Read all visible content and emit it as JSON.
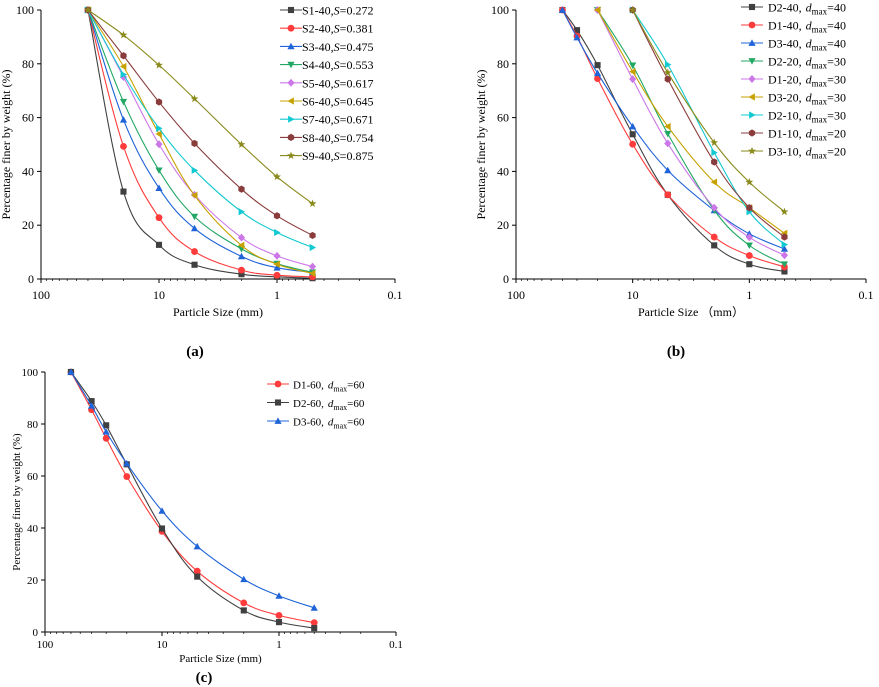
{
  "captions": [
    "(a)",
    "(b)",
    "(c)"
  ],
  "chart_data": [
    {
      "id": "a",
      "type": "line",
      "xscale": "log-reversed",
      "xlabel": "Particle Size (mm)",
      "ylabel": "Percentage finer by weight (%)",
      "xlim": [
        100,
        0.1
      ],
      "ylim": [
        0,
        100
      ],
      "xticks": [
        100,
        10,
        1,
        0.1
      ],
      "xtick_labels": [
        "100",
        "10",
        "1",
        "0.1"
      ],
      "yticks": [
        0,
        20,
        40,
        60,
        80,
        100
      ],
      "ytick_labels": [
        "0",
        "20",
        "40",
        "60",
        "80",
        "100"
      ],
      "x": [
        40,
        20,
        10,
        5,
        2,
        1,
        0.5
      ],
      "legend_position": "top-right",
      "series": [
        {
          "name": "S1-40,",
          "suffix": "=0.272",
          "dmax": false,
          "color": "#404040",
          "marker": "square",
          "values": [
            100,
            32.5,
            12.7,
            5.3,
            1.8,
            0.8,
            0.3
          ]
        },
        {
          "name": "S2-40,",
          "suffix": "=0.381",
          "dmax": false,
          "color": "#ff3b3b",
          "marker": "circle",
          "values": [
            100,
            49.3,
            22.8,
            10.2,
            3.3,
            1.4,
            0.8
          ]
        },
        {
          "name": "S3-40,",
          "suffix": "=0.475",
          "dmax": false,
          "color": "#1f63d8",
          "marker": "triangle-up",
          "values": [
            100,
            59.2,
            33.8,
            18.8,
            8.4,
            4.2,
            2.5
          ]
        },
        {
          "name": "S4-40,",
          "suffix": "=0.553",
          "dmax": false,
          "color": "#22a864",
          "marker": "triangle-down",
          "values": [
            100,
            65.9,
            40.4,
            23.2,
            11.2,
            5.7,
            2.5
          ]
        },
        {
          "name": "S5-40,",
          "suffix": "=0.617",
          "dmax": false,
          "color": "#cc77e8",
          "marker": "diamond",
          "values": [
            100,
            75.1,
            50.1,
            31.3,
            15.4,
            8.6,
            4.6
          ]
        },
        {
          "name": "S6-40,",
          "suffix": "=0.645",
          "dmax": false,
          "color": "#c7a100",
          "marker": "triangle-left",
          "values": [
            100,
            79.0,
            53.9,
            31.1,
            12.5,
            5.5,
            2.1
          ]
        },
        {
          "name": "S7-40,",
          "suffix": "=0.671",
          "dmax": false,
          "color": "#11c9d1",
          "marker": "triangle-right",
          "values": [
            100,
            76.0,
            56.0,
            40.4,
            25.0,
            17.3,
            11.7
          ]
        },
        {
          "name": "S8-40,",
          "suffix": "=0.754",
          "dmax": false,
          "color": "#8a3c3c",
          "marker": "hexagon",
          "values": [
            100,
            83.0,
            65.8,
            50.4,
            33.4,
            23.5,
            16.2
          ]
        },
        {
          "name": "S9-40,",
          "suffix": "=0.875",
          "dmax": false,
          "color": "#8a8a1c",
          "marker": "star",
          "values": [
            100,
            90.7,
            79.5,
            67.0,
            50.0,
            38.0,
            28.0
          ]
        }
      ]
    },
    {
      "id": "b",
      "type": "line",
      "xscale": "log-reversed",
      "xlabel": "Particle Size （mm）",
      "ylabel": "Percentage finer by weight (%)",
      "xlim": [
        100,
        0.1
      ],
      "ylim": [
        0,
        100
      ],
      "xticks": [
        100,
        10,
        1,
        0.1
      ],
      "xtick_labels": [
        "100",
        "10",
        "1",
        "0.1"
      ],
      "yticks": [
        0,
        20,
        40,
        60,
        80,
        100
      ],
      "ytick_labels": [
        "0",
        "20",
        "40",
        "60",
        "80",
        "100"
      ],
      "legend_position": "top-right",
      "series": [
        {
          "name": "D2-40,",
          "dmax_value": "=40",
          "dmax": true,
          "color": "#404040",
          "marker": "square",
          "x": [
            40,
            30,
            20,
            10,
            5,
            2,
            1,
            0.5
          ],
          "values": [
            100,
            92.5,
            79.5,
            53.8,
            31.3,
            12.5,
            5.5,
            2.8
          ]
        },
        {
          "name": "D1-40,",
          "dmax_value": "=40",
          "dmax": true,
          "color": "#ff3b3b",
          "marker": "circle",
          "x": [
            40,
            30,
            20,
            10,
            5,
            2,
            1,
            0.5
          ],
          "values": [
            100,
            90.3,
            74.5,
            50.1,
            31.3,
            15.6,
            8.7,
            4.5
          ]
        },
        {
          "name": "D3-40,",
          "dmax_value": "=40",
          "dmax": true,
          "color": "#1f63d8",
          "marker": "triangle-up",
          "x": [
            40,
            30,
            20,
            10,
            5,
            2,
            1,
            0.5
          ],
          "values": [
            100,
            89.8,
            76.5,
            56.7,
            40.4,
            25.5,
            16.8,
            11.2
          ]
        },
        {
          "name": "D2-20,",
          "dmax_value": "=30",
          "dmax": true,
          "color": "#22a864",
          "marker": "triangle-down",
          "x": [
            20,
            10,
            5,
            2,
            1,
            0.5
          ],
          "values": [
            100,
            79.4,
            54.0,
            25.6,
            12.5,
            5.5
          ]
        },
        {
          "name": "D1-20,",
          "dmax_value": "=30",
          "dmax": true,
          "color": "#cc77e8",
          "marker": "diamond",
          "x": [
            20,
            10,
            5,
            2,
            1,
            0.5
          ],
          "values": [
            100,
            74.3,
            50.4,
            26.5,
            15.5,
            8.8
          ]
        },
        {
          "name": "D3-20,",
          "dmax_value": "=30",
          "dmax": true,
          "color": "#c7a100",
          "marker": "triangle-left",
          "x": [
            20,
            10,
            5,
            2,
            1,
            0.5
          ],
          "values": [
            100,
            77.1,
            56.7,
            36.0,
            26.5,
            17.0
          ]
        },
        {
          "name": "D2-10,",
          "dmax_value": "=30",
          "dmax": true,
          "color": "#11c9d1",
          "marker": "triangle-right",
          "x": [
            10,
            5,
            2,
            1,
            0.5
          ],
          "values": [
            100,
            79.7,
            47.0,
            25.0,
            12.8
          ]
        },
        {
          "name": "D1-10,",
          "dmax_value": "=20",
          "dmax": true,
          "color": "#8a3c3c",
          "marker": "hexagon",
          "x": [
            10,
            5,
            2,
            1,
            0.5
          ],
          "values": [
            100,
            74.3,
            43.5,
            26.5,
            15.6
          ]
        },
        {
          "name": "D3-10,",
          "dmax_value": "=20",
          "dmax": true,
          "color": "#8a8a1c",
          "marker": "star",
          "x": [
            10,
            5,
            2,
            1,
            0.5
          ],
          "values": [
            100,
            76.7,
            50.7,
            36.0,
            25.0
          ]
        }
      ]
    },
    {
      "id": "c",
      "type": "line",
      "xscale": "log-reversed",
      "xlabel": "Particle Size (mm)",
      "ylabel": "Percentage finer by weight (%)",
      "xlim": [
        100,
        0.1
      ],
      "ylim": [
        0,
        100
      ],
      "xticks": [
        100,
        10,
        1,
        0.1
      ],
      "xtick_labels": [
        "100",
        "10",
        "1",
        "0.1"
      ],
      "yticks": [
        0,
        20,
        40,
        60,
        80,
        100
      ],
      "ytick_labels": [
        "0",
        "20",
        "40",
        "60",
        "80",
        "100"
      ],
      "x": [
        60,
        40,
        30,
        20,
        10,
        5,
        2,
        1,
        0.5
      ],
      "legend_position": "top-right",
      "series": [
        {
          "name": "D1-60,",
          "dmax_value": "=60",
          "dmax": true,
          "color": "#ff3b3b",
          "marker": "circle",
          "values": [
            100,
            85.5,
            74.5,
            59.8,
            38.7,
            23.4,
            11.2,
            6.4,
            3.6
          ]
        },
        {
          "name": "D2-60,",
          "dmax_value": "=60",
          "dmax": true,
          "color": "#404040",
          "marker": "square",
          "values": [
            100,
            88.8,
            79.5,
            64.5,
            39.8,
            21.3,
            8.3,
            3.8,
            1.5
          ]
        },
        {
          "name": "D3-60,",
          "dmax_value": "=60",
          "dmax": true,
          "color": "#1f63d8",
          "marker": "triangle-up",
          "values": [
            100,
            87.0,
            77.0,
            64.8,
            46.6,
            32.9,
            20.3,
            13.9,
            9.3
          ]
        }
      ]
    }
  ]
}
